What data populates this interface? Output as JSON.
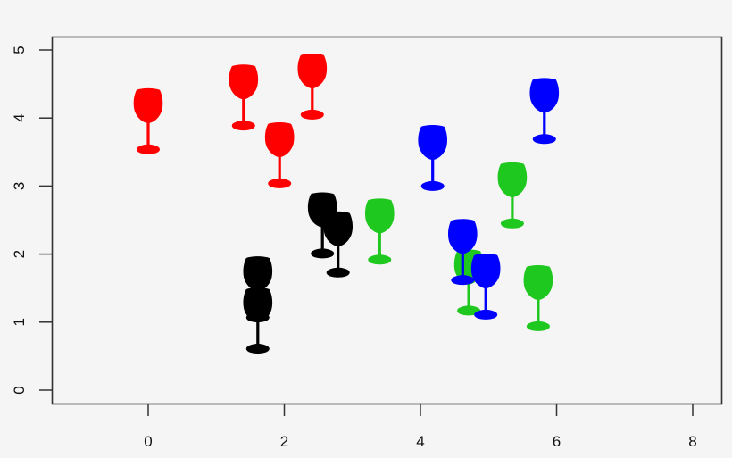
{
  "chart_data": {
    "type": "scatter",
    "title": "",
    "xlabel": "",
    "ylabel": "",
    "marker": "wine-glass",
    "xlim": [
      -1.4,
      8.4
    ],
    "ylim": [
      -0.2,
      5.2
    ],
    "xticks": [
      0,
      2,
      4,
      6,
      8
    ],
    "yticks": [
      0,
      1,
      2,
      3,
      4,
      5
    ],
    "grid": false,
    "legend": null,
    "colors": {
      "red": "#ff0000",
      "black": "#000000",
      "green": "#1ec81e",
      "blue": "#0000ff"
    },
    "series": [
      {
        "name": "red",
        "color": "#ff0000",
        "points": [
          {
            "x": 0.0,
            "y": 3.94
          },
          {
            "x": 1.4,
            "y": 4.29
          },
          {
            "x": 2.41,
            "y": 4.45
          },
          {
            "x": 1.93,
            "y": 3.44
          }
        ]
      },
      {
        "name": "black",
        "color": "#000000",
        "points": [
          {
            "x": 1.61,
            "y": 1.47
          },
          {
            "x": 1.61,
            "y": 1.01
          },
          {
            "x": 2.56,
            "y": 2.41
          },
          {
            "x": 2.79,
            "y": 2.13
          }
        ]
      },
      {
        "name": "green",
        "color": "#1ec81e",
        "points": [
          {
            "x": 3.4,
            "y": 2.32
          },
          {
            "x": 5.35,
            "y": 2.85
          },
          {
            "x": 4.71,
            "y": 1.57
          },
          {
            "x": 5.73,
            "y": 1.34
          }
        ]
      },
      {
        "name": "blue",
        "color": "#0000ff",
        "points": [
          {
            "x": 4.18,
            "y": 3.4
          },
          {
            "x": 5.82,
            "y": 4.09
          },
          {
            "x": 4.62,
            "y": 2.02
          },
          {
            "x": 4.96,
            "y": 1.51
          }
        ]
      }
    ]
  }
}
